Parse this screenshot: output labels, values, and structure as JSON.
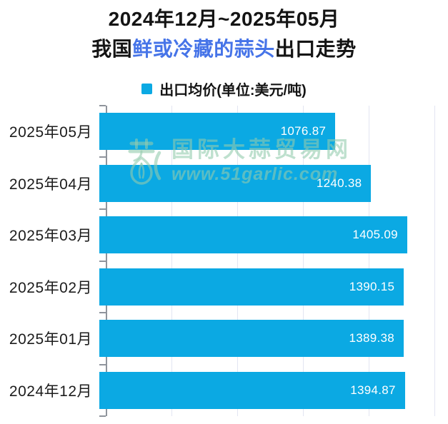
{
  "header": {
    "title_line1": "2024年12月~2025年05月",
    "title_line2_prefix": "我国",
    "title_line2_highlight": "鲜或冷藏的蒜头",
    "title_line2_suffix": "出口走势"
  },
  "legend": {
    "label": "出口均价(单位:美元/吨)",
    "swatch_color": "#0BA9E3"
  },
  "watermark": {
    "logo": "garlic-icon",
    "site_name": "国际大蒜贸易网",
    "site_url": "www.51garlic.com"
  },
  "colors": {
    "bar": "#0BA9E3",
    "title_highlight": "#4674E8",
    "gridline": "#E2E5F2",
    "axis": "#8F949C",
    "value_label": "#ffffff"
  },
  "chart_data": {
    "type": "bar",
    "orientation": "horizontal",
    "title": "2024年12月~2025年05月 我国鲜或冷藏的蒜头出口走势",
    "series_name": "出口均价(单位:美元/吨)",
    "categories": [
      "2025年05月",
      "2025年04月",
      "2025年03月",
      "2025年02月",
      "2025年01月",
      "2024年12月"
    ],
    "values": [
      1076.87,
      1240.38,
      1405.09,
      1390.15,
      1389.38,
      1394.87
    ],
    "xlabel": "",
    "ylabel": "",
    "xlim": [
      0,
      1500
    ],
    "grid_interval": 300,
    "grid": true,
    "legend_position": "top",
    "value_labels": "inside-end"
  }
}
